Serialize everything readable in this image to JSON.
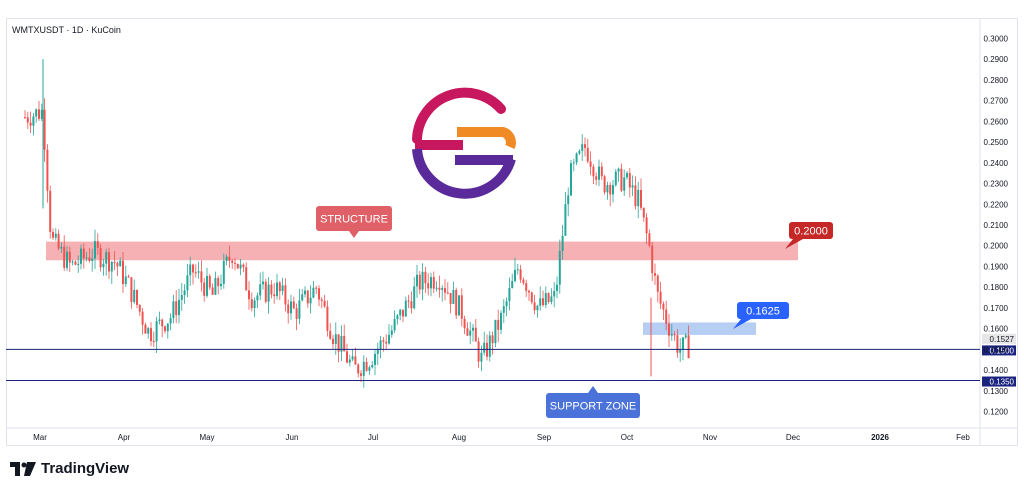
{
  "symbol_line": "WMTXUSDT · 1D · KuCoin",
  "brand": {
    "name": "TradingView",
    "icon": "tradingview-logo-icon"
  },
  "colors": {
    "up": "#26a69a",
    "down": "#ef5350",
    "structure_zone": "#f4a3a8",
    "structure_label": "#e06068",
    "dark_red_label": "#c62828",
    "blue_zone": "#a9c4f2",
    "blue_label": "#2962ff",
    "support_label": "#4a72d9",
    "hline": "#1a237e",
    "axis_text": "#131722"
  },
  "chart_data": {
    "type": "candlestick",
    "title": "WMTXUSDT · 1D · KuCoin",
    "ylim": [
      0.115,
      0.305
    ],
    "y_ticks": [
      "0.3000",
      "0.2900",
      "0.2800",
      "0.2700",
      "0.2600",
      "0.2500",
      "0.2400",
      "0.2300",
      "0.2200",
      "0.2100",
      "0.2000",
      "0.1900",
      "0.1800",
      "0.1700",
      "0.1600",
      "0.1500",
      "0.1400",
      "0.1300",
      "0.1200"
    ],
    "x_ticks": [
      "Mar",
      "Apr",
      "May",
      "Jun",
      "Jul",
      "Aug",
      "Sep",
      "Oct",
      "Nov",
      "Dec",
      "2026",
      "Feb"
    ],
    "price_path": [
      [
        "Feb 24",
        0.262
      ],
      [
        "Mar 2",
        0.265
      ],
      [
        "Mar 5",
        0.203
      ],
      [
        "Mar 12",
        0.19
      ],
      [
        "Mar 20",
        0.197
      ],
      [
        "Mar 28",
        0.192
      ],
      [
        "Apr 3",
        0.18
      ],
      [
        "Apr 10",
        0.158
      ],
      [
        "Apr 18",
        0.166
      ],
      [
        "Apr 26",
        0.188
      ],
      [
        "May 3",
        0.176
      ],
      [
        "May 10",
        0.197
      ],
      [
        "May 17",
        0.175
      ],
      [
        "May 25",
        0.18
      ],
      [
        "Jun 2",
        0.168
      ],
      [
        "Jun 10",
        0.18
      ],
      [
        "Jun 16",
        0.158
      ],
      [
        "Jun 24",
        0.14
      ],
      [
        "Jun 30",
        0.146
      ],
      [
        "Jul 8",
        0.16
      ],
      [
        "Jul 17",
        0.182
      ],
      [
        "Jul 24",
        0.185
      ],
      [
        "Aug 2",
        0.168
      ],
      [
        "Aug 9",
        0.145
      ],
      [
        "Aug 16",
        0.165
      ],
      [
        "Aug 22",
        0.19
      ],
      [
        "Aug 29",
        0.17
      ],
      [
        "Sep 5",
        0.175
      ],
      [
        "Sep 10",
        0.232
      ],
      [
        "Sep 16",
        0.248
      ],
      [
        "Sep 22",
        0.23
      ],
      [
        "Sep 30",
        0.232
      ],
      [
        "Oct 5",
        0.222
      ],
      [
        "Oct 9",
        0.2
      ],
      [
        "Oct 12",
        0.176
      ],
      [
        "Oct 16",
        0.162
      ],
      [
        "Oct 20",
        0.15
      ],
      [
        "Oct 24",
        0.152
      ]
    ],
    "levels": {
      "structure": {
        "label": "STRUCTURE",
        "from": 0.193,
        "to": 0.202,
        "value_label": "0.2000"
      },
      "resistance_zone": {
        "from": 0.157,
        "to": 0.163,
        "value_label": "0.1625"
      },
      "support": {
        "label": "SUPPORT ZONE",
        "lines": [
          0.15,
          0.135
        ]
      },
      "price_labels": [
        "0.1527",
        "0.1500",
        "0.1350"
      ]
    },
    "logo": "wmtx-logo"
  }
}
